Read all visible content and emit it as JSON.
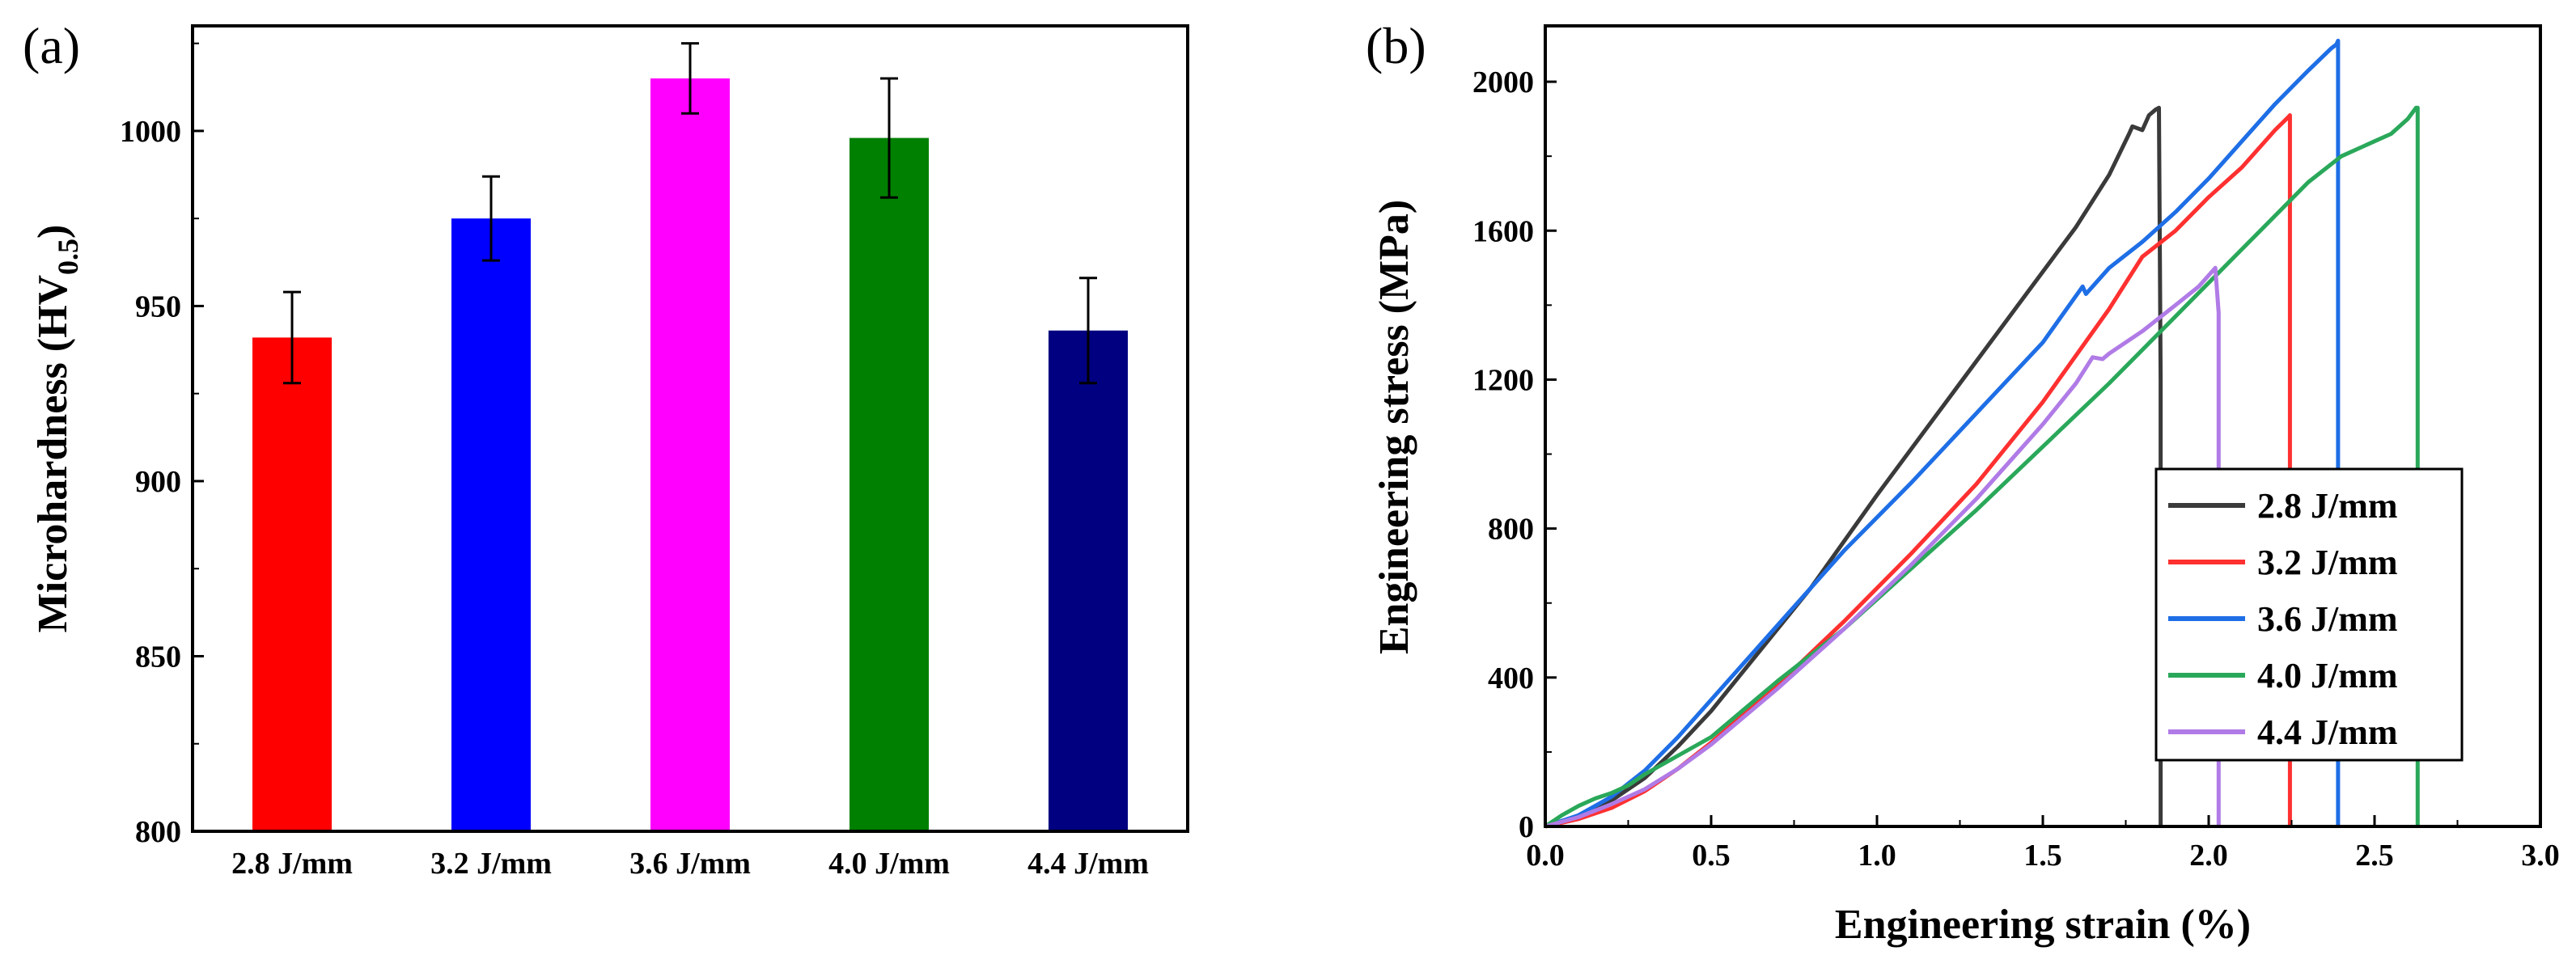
{
  "chart_data": [
    {
      "panel_label": "(a)",
      "type": "bar",
      "ylabel": "Microhardness (HV",
      "ylabel_sub": "0.5",
      "ylabel_close": ")",
      "xlabel": "",
      "ylim": [
        800,
        1030
      ],
      "yticks": [
        800,
        850,
        900,
        950,
        1000
      ],
      "categories": [
        "2.8 J/mm",
        "3.2 J/mm",
        "3.6 J/mm",
        "4.0 J/mm",
        "4.4 J/mm"
      ],
      "values": [
        941,
        975,
        1015,
        998,
        943
      ],
      "errors": [
        13,
        12,
        10,
        17,
        15
      ],
      "colors": [
        "#ff0000",
        "#0000ff",
        "#ff00ff",
        "#008000",
        "#000080"
      ]
    },
    {
      "panel_label": "(b)",
      "type": "line",
      "xlabel": "Engineering strain (%)",
      "ylabel": "Engineering stress (MPa)",
      "xlim": [
        0,
        3.0
      ],
      "ylim": [
        0,
        2150
      ],
      "xticks": [
        "0.0",
        "0.5",
        "1.0",
        "1.5",
        "2.0",
        "2.5",
        "3.0"
      ],
      "yticks": [
        "0",
        "400",
        "800",
        "1200",
        "1600",
        "2000"
      ],
      "legend_position": "lower-right",
      "series": [
        {
          "name": "2.8 J/mm",
          "color": "#3a3a3a",
          "x": [
            0,
            0.1,
            0.2,
            0.3,
            0.4,
            0.5,
            0.6,
            0.8,
            1.0,
            1.2,
            1.4,
            1.6,
            1.7,
            1.76,
            1.77,
            1.8,
            1.82,
            1.84,
            1.85,
            1.855,
            1.855
          ],
          "y": [
            0,
            25,
            70,
            130,
            215,
            310,
            420,
            640,
            890,
            1130,
            1370,
            1610,
            1750,
            1860,
            1880,
            1870,
            1910,
            1925,
            1930,
            1200,
            0
          ]
        },
        {
          "name": "3.2 J/mm",
          "color": "#ff3030",
          "x": [
            0,
            0.1,
            0.2,
            0.3,
            0.4,
            0.5,
            0.7,
            0.9,
            1.1,
            1.3,
            1.5,
            1.7,
            1.8,
            1.9,
            2.0,
            2.1,
            2.2,
            2.24,
            2.245,
            2.245
          ],
          "y": [
            0,
            20,
            50,
            95,
            155,
            225,
            380,
            550,
            730,
            920,
            1140,
            1390,
            1530,
            1600,
            1690,
            1770,
            1870,
            1905,
            1910,
            0
          ]
        },
        {
          "name": "3.6 J/mm",
          "color": "#1e6ee6",
          "x": [
            0,
            0.1,
            0.2,
            0.3,
            0.4,
            0.5,
            0.7,
            0.9,
            1.1,
            1.3,
            1.5,
            1.62,
            1.63,
            1.65,
            1.7,
            1.8,
            1.9,
            2.0,
            2.1,
            2.2,
            2.3,
            2.37,
            2.385,
            2.39,
            2.39
          ],
          "y": [
            0,
            30,
            80,
            150,
            240,
            340,
            540,
            740,
            920,
            1110,
            1300,
            1450,
            1430,
            1450,
            1500,
            1570,
            1650,
            1740,
            1840,
            1940,
            2030,
            2090,
            2100,
            2110,
            0
          ]
        },
        {
          "name": "4.0 J/mm",
          "color": "#2aa85a",
          "x": [
            0,
            0.05,
            0.1,
            0.15,
            0.2,
            0.25,
            0.3,
            0.5,
            0.7,
            0.9,
            1.1,
            1.3,
            1.5,
            1.7,
            1.9,
            2.1,
            2.3,
            2.4,
            2.5,
            2.55,
            2.6,
            2.625,
            2.63,
            2.63
          ],
          "y": [
            0,
            30,
            55,
            75,
            90,
            110,
            140,
            240,
            390,
            530,
            690,
            850,
            1020,
            1190,
            1370,
            1550,
            1730,
            1800,
            1840,
            1860,
            1900,
            1930,
            1930,
            0
          ]
        },
        {
          "name": "4.4 J/mm",
          "color": "#b07be6",
          "x": [
            0,
            0.1,
            0.2,
            0.3,
            0.4,
            0.5,
            0.7,
            0.9,
            1.1,
            1.3,
            1.5,
            1.6,
            1.65,
            1.68,
            1.7,
            1.8,
            1.9,
            1.97,
            2.0,
            2.02,
            2.03,
            2.03
          ],
          "y": [
            0,
            25,
            60,
            100,
            155,
            220,
            370,
            530,
            700,
            880,
            1080,
            1190,
            1260,
            1255,
            1270,
            1330,
            1400,
            1450,
            1480,
            1500,
            1380,
            0
          ]
        }
      ]
    }
  ]
}
